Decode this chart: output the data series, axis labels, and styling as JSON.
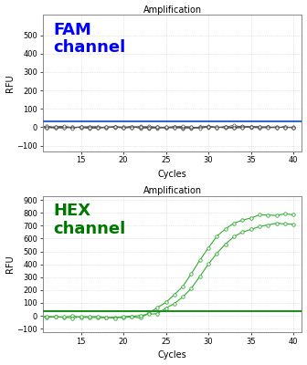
{
  "title": "Amplification",
  "xlabel": "Cycles",
  "ylabel": "RFU",
  "fam_label": "FAM\nchannel",
  "hex_label": "HEX\nchannel",
  "fam_label_color": "#0000FF",
  "hex_label_color": "#007700",
  "fam_ylim": [
    -130,
    610
  ],
  "hex_ylim": [
    -130,
    930
  ],
  "fam_yticks": [
    0,
    100,
    200,
    300,
    400,
    500
  ],
  "hex_yticks": [
    0,
    100,
    200,
    300,
    400,
    500,
    600,
    700,
    800,
    900
  ],
  "fam_ytick_extra": -100,
  "hex_ytick_extra": -100,
  "xlim": [
    10.5,
    41
  ],
  "xticks": [
    15,
    20,
    25,
    30,
    35,
    40
  ],
  "fam_threshold": 30,
  "hex_threshold": 35,
  "fam_threshold_color": "#3366CC",
  "hex_threshold_color": "#228B22",
  "grid_color": "#CCCCCC",
  "background_color": "#FFFFFF",
  "line_color_fam": "#555555",
  "marker_color_fam": "#555555",
  "line_color_hex": "#33AA33",
  "marker_color_hex": "#33AA33",
  "num_fam_lines": 8,
  "num_hex_lines": 2
}
